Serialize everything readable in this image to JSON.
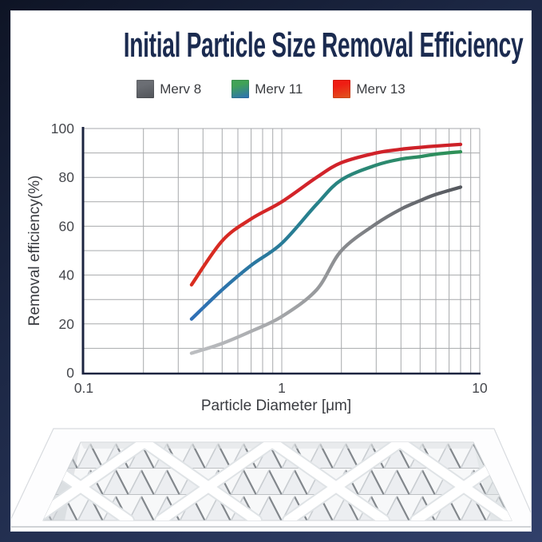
{
  "header": {
    "title": "Initial Particle Size Removal Efficiency"
  },
  "legend": {
    "items": [
      {
        "label": "Merv 8",
        "swatch_colors": [
          "#6b6e74",
          "#515459"
        ]
      },
      {
        "label": "Merv 11",
        "swatch_colors": [
          "#41a257",
          "#2e6fb7"
        ]
      },
      {
        "label": "Merv 13",
        "swatch_colors": [
          "#ef1d13",
          "#e0571f"
        ]
      }
    ]
  },
  "chart_data": {
    "type": "line",
    "title": "",
    "xlabel": "Particle Diameter [μm]",
    "ylabel": "Removal efficiency(%)",
    "xscale": "log",
    "xlim": [
      0.1,
      10
    ],
    "ylim": [
      0,
      100
    ],
    "xticks": {
      "values": [
        0.1,
        1,
        10
      ],
      "labels": [
        "0.1",
        "1",
        "10"
      ]
    },
    "yticks": {
      "values": [
        0,
        20,
        40,
        60,
        80,
        100
      ],
      "labels": [
        "0",
        "20",
        "40",
        "60",
        "80",
        "100"
      ]
    },
    "grid": {
      "show": true,
      "x_minor_log": true,
      "y_step": 10,
      "color": "#a7a9ac"
    },
    "axis_color": "#1c2440",
    "legend_position": "top",
    "series": [
      {
        "name": "Merv 8",
        "colors": [
          "#bcbec1",
          "#939598",
          "#55585e"
        ],
        "x": [
          0.35,
          0.5,
          0.7,
          1,
          1.5,
          2,
          3,
          4,
          5,
          6,
          8
        ],
        "y": [
          8,
          12,
          17,
          23,
          34,
          50,
          61,
          67,
          70.5,
          73,
          76
        ]
      },
      {
        "name": "Merv 11",
        "colors": [
          "#2f6fb6",
          "#27808d",
          "#2f9156"
        ],
        "x": [
          0.35,
          0.5,
          0.7,
          1,
          1.5,
          2,
          3,
          4,
          5,
          6,
          8
        ],
        "y": [
          22,
          34,
          44,
          53,
          69,
          79,
          85,
          87.5,
          88.5,
          89.5,
          90.5
        ]
      },
      {
        "name": "Merv 13",
        "colors": [
          "#d92d1f",
          "#d2232b",
          "#cd2128"
        ],
        "x": [
          0.35,
          0.5,
          0.7,
          1,
          1.5,
          2,
          3,
          4,
          5,
          6,
          8
        ],
        "y": [
          36,
          54,
          63,
          70,
          80,
          86,
          90,
          91.5,
          92.3,
          92.8,
          93.5
        ]
      }
    ]
  }
}
